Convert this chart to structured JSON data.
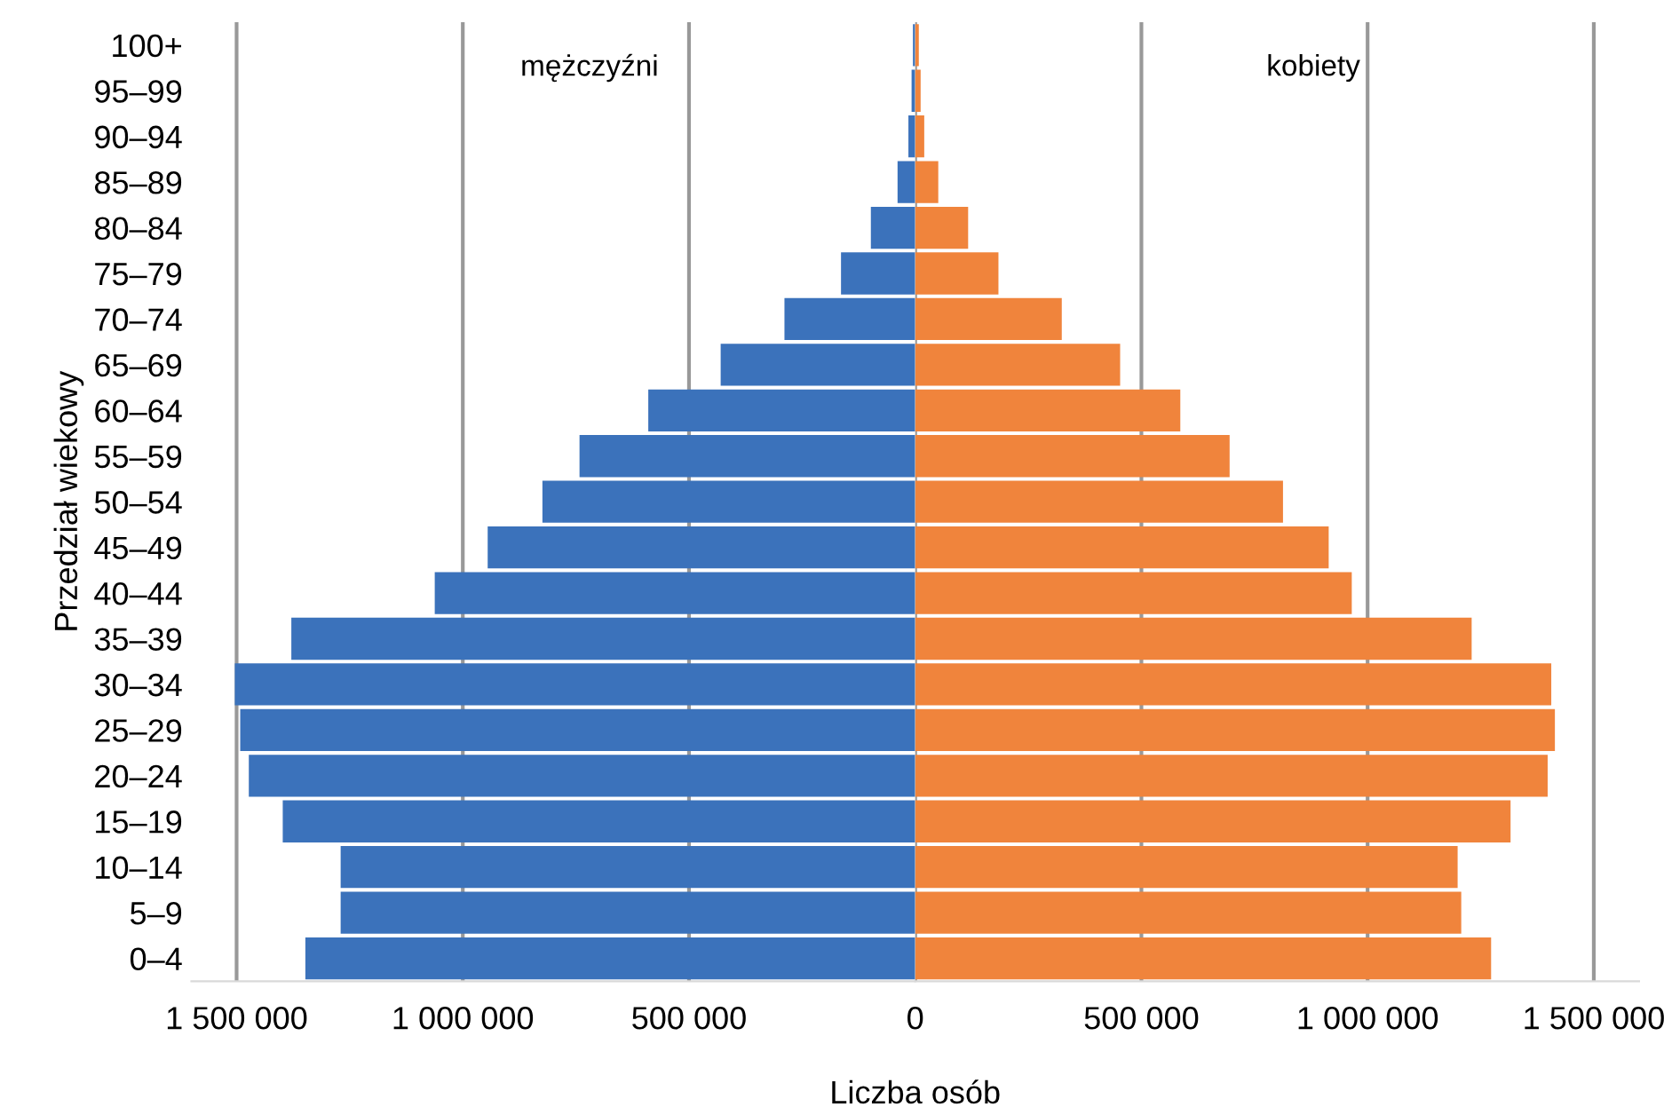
{
  "chart_data": [
    {
      "type": "bar",
      "orientation": "horizontal",
      "xlabel": "Liczba osób",
      "ylabel": "Przedział wiekowy",
      "categories": [
        "100+",
        "95–99",
        "90–94",
        "85–89",
        "80–84",
        "75–79",
        "70–74",
        "65–69",
        "60–64",
        "55–59",
        "50–54",
        "45–49",
        "40–44",
        "35–39",
        "30–34",
        "25–29",
        "20–24",
        "15–19",
        "10–14",
        "5–9",
        "0–4"
      ],
      "series": [
        {
          "name": "mężczyźni",
          "color": "#3b72bb",
          "values": [
            5000,
            8000,
            15000,
            39000,
            98000,
            164000,
            289000,
            430000,
            590000,
            742000,
            824000,
            945000,
            1062000,
            1379000,
            1504000,
            1492000,
            1473000,
            1398000,
            1270000,
            1270000,
            1348000
          ]
        }
      ],
      "xlim": [
        1600000,
        0
      ],
      "xticks": [
        {
          "value": 1500000,
          "label": "1 500 000"
        },
        {
          "value": 1000000,
          "label": "1 000 000"
        },
        {
          "value": 500000,
          "label": "500 000"
        }
      ],
      "grid": "x",
      "legend": false
    },
    {
      "type": "bar",
      "orientation": "horizontal",
      "categories": [
        null,
        null,
        null,
        null,
        null,
        null,
        null,
        null,
        null,
        null,
        null,
        null,
        null,
        null,
        null,
        null,
        null,
        null,
        null,
        null,
        null
      ],
      "series": [
        {
          "name": "kobiety",
          "color": "#f0843c",
          "values": [
            8000,
            12000,
            20000,
            51000,
            117000,
            184000,
            324000,
            453000,
            586000,
            695000,
            813000,
            914000,
            965000,
            1230000,
            1406000,
            1414000,
            1398000,
            1316000,
            1199000,
            1207000,
            1273000
          ]
        }
      ],
      "xlim": [
        0,
        1600000
      ],
      "xticks": [
        0,
        {
          "value": 500000,
          "label": "500 000"
        },
        {
          "value": 1000000,
          "label": "1 000 000"
        },
        {
          "value": 1500000,
          "label": "1 500 000"
        }
      ],
      "grid": "x",
      "legend": false
    }
  ]
}
